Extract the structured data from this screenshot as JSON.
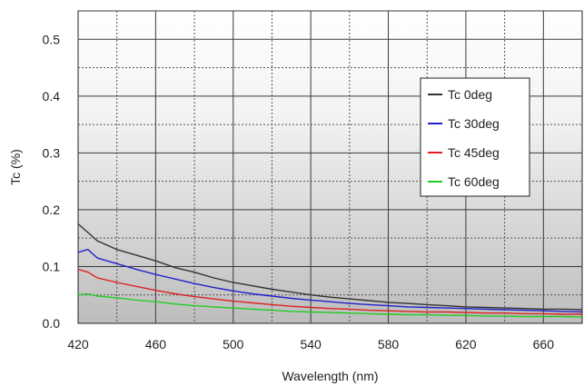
{
  "chart_data": {
    "type": "line",
    "title": "",
    "xlabel": "Wavelength (nm)",
    "ylabel": "Tc (%)",
    "xlim": [
      420,
      680
    ],
    "ylim": [
      0.0,
      0.55
    ],
    "xticks": [
      420,
      460,
      500,
      540,
      580,
      620,
      660
    ],
    "xtick_labels": [
      "420",
      "460",
      "500",
      "540",
      "580",
      "620",
      "660"
    ],
    "yticks": [
      0.0,
      0.1,
      0.2,
      0.3,
      0.4,
      0.5
    ],
    "ytick_labels": [
      "0.0",
      "0.1",
      "0.2",
      "0.3",
      "0.4",
      "0.5"
    ],
    "grid": true,
    "legend_position": "top-right",
    "series": [
      {
        "name": "Tc 0deg",
        "color": "#333333",
        "x": [
          420,
          425,
          430,
          440,
          450,
          460,
          470,
          480,
          490,
          500,
          510,
          520,
          530,
          540,
          550,
          560,
          570,
          580,
          590,
          600,
          610,
          620,
          630,
          640,
          650,
          660,
          670,
          680
        ],
        "y": [
          0.175,
          0.16,
          0.145,
          0.13,
          0.12,
          0.11,
          0.098,
          0.09,
          0.08,
          0.072,
          0.066,
          0.06,
          0.055,
          0.05,
          0.046,
          0.043,
          0.04,
          0.037,
          0.035,
          0.033,
          0.031,
          0.029,
          0.028,
          0.027,
          0.026,
          0.025,
          0.025,
          0.024
        ]
      },
      {
        "name": "Tc 30deg",
        "color": "#2222cc",
        "x": [
          420,
          425,
          430,
          440,
          450,
          460,
          470,
          480,
          490,
          500,
          510,
          520,
          530,
          540,
          550,
          560,
          570,
          580,
          590,
          600,
          610,
          620,
          630,
          640,
          650,
          660,
          670,
          680
        ],
        "y": [
          0.125,
          0.13,
          0.115,
          0.105,
          0.095,
          0.086,
          0.078,
          0.07,
          0.063,
          0.057,
          0.052,
          0.048,
          0.044,
          0.041,
          0.038,
          0.035,
          0.033,
          0.031,
          0.029,
          0.028,
          0.027,
          0.026,
          0.025,
          0.024,
          0.023,
          0.022,
          0.021,
          0.02
        ]
      },
      {
        "name": "Tc 45deg",
        "color": "#dd2222",
        "x": [
          420,
          425,
          430,
          440,
          450,
          460,
          470,
          480,
          490,
          500,
          510,
          520,
          530,
          540,
          550,
          560,
          570,
          580,
          590,
          600,
          610,
          620,
          630,
          640,
          650,
          660,
          670,
          680
        ],
        "y": [
          0.095,
          0.09,
          0.08,
          0.072,
          0.065,
          0.058,
          0.052,
          0.047,
          0.043,
          0.039,
          0.036,
          0.033,
          0.03,
          0.028,
          0.026,
          0.025,
          0.023,
          0.022,
          0.021,
          0.02,
          0.02,
          0.019,
          0.018,
          0.018,
          0.017,
          0.017,
          0.016,
          0.016
        ]
      },
      {
        "name": "Tc 60deg",
        "color": "#22cc22",
        "x": [
          420,
          425,
          430,
          440,
          450,
          460,
          470,
          480,
          490,
          500,
          510,
          520,
          530,
          540,
          550,
          560,
          570,
          580,
          590,
          600,
          610,
          620,
          630,
          640,
          650,
          660,
          670,
          680
        ],
        "y": [
          0.05,
          0.052,
          0.048,
          0.045,
          0.041,
          0.038,
          0.034,
          0.031,
          0.029,
          0.027,
          0.025,
          0.023,
          0.021,
          0.02,
          0.019,
          0.018,
          0.017,
          0.016,
          0.015,
          0.015,
          0.014,
          0.014,
          0.013,
          0.013,
          0.012,
          0.012,
          0.012,
          0.011
        ]
      }
    ]
  }
}
